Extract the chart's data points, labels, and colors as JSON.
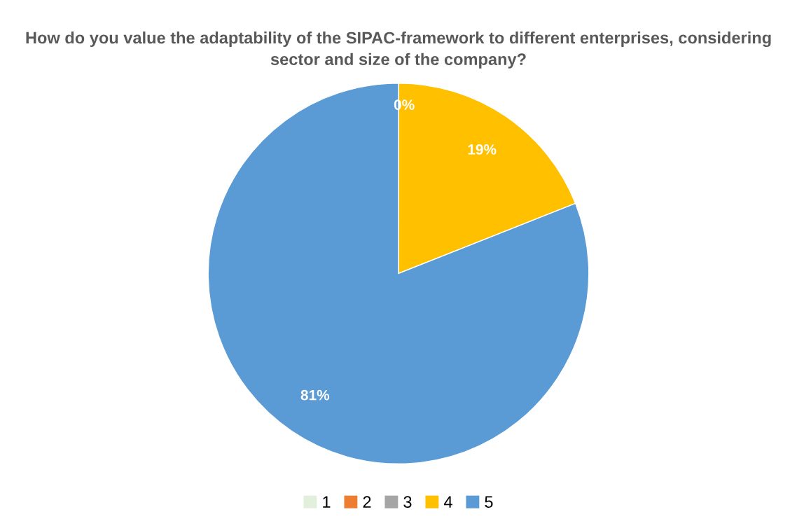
{
  "chart_data": {
    "type": "pie",
    "title": "How do you value the adaptability of the SIPAC-framework to different enterprises, considering sector and size of the company?",
    "categories": [
      "1",
      "2",
      "3",
      "4",
      "5"
    ],
    "values": [
      0,
      0,
      0,
      19,
      81
    ],
    "colors": [
      "#e2efda",
      "#ed7d31",
      "#a5a5a5",
      "#ffc000",
      "#5b9bd5"
    ],
    "value_labels": [
      "0%",
      null,
      null,
      "19%",
      "81%"
    ],
    "legend": "bottom"
  }
}
